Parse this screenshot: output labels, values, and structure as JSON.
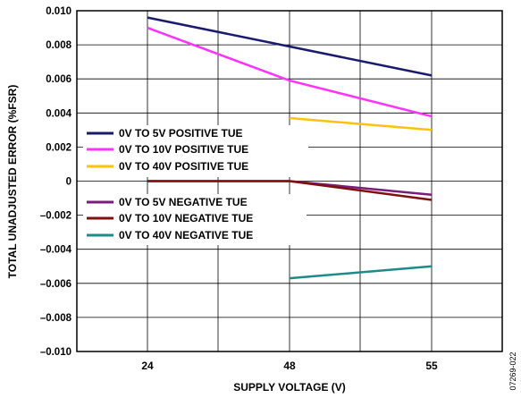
{
  "chart_data": {
    "type": "line",
    "xlabel": "SUPPLY VOLTAGE (V)",
    "ylabel": "TOTAL UNADJUSTED ERROR (%FSR)",
    "categories": [
      "24",
      "48",
      "55"
    ],
    "ylim": [
      -0.01,
      0.01
    ],
    "yticks": [
      "0.010",
      "0.008",
      "0.006",
      "0.004",
      "0.002",
      "0",
      "–0.002",
      "–0.004",
      "–0.006",
      "–0.008",
      "–0.010"
    ],
    "grid": true,
    "legend_position": "center-left",
    "series": [
      {
        "name": "0V TO 5V POSITIVE TUE",
        "color": "#1a1a6e",
        "values": [
          0.0096,
          0.0079,
          0.0062
        ]
      },
      {
        "name": "0V TO 10V POSITIVE TUE",
        "color": "#ff33ff",
        "values": [
          0.009,
          0.0059,
          0.0038
        ]
      },
      {
        "name": "0V TO 40V POSITIVE TUE",
        "color": "#ffc20e",
        "values": [
          null,
          0.0037,
          0.003
        ]
      },
      {
        "name": "0V TO 5V NEGATIVE TUE",
        "color": "#7b1c7b",
        "values": [
          0.0,
          0.0,
          -0.0008
        ]
      },
      {
        "name": "0V TO 10V NEGATIVE TUE",
        "color": "#7f1010",
        "values": [
          0.0,
          0.0,
          -0.0011
        ]
      },
      {
        "name": "0V TO 40V NEGATIVE TUE",
        "color": "#1f8a8a",
        "values": [
          null,
          -0.0057,
          -0.005
        ]
      }
    ]
  },
  "figure_id": "07269-022"
}
